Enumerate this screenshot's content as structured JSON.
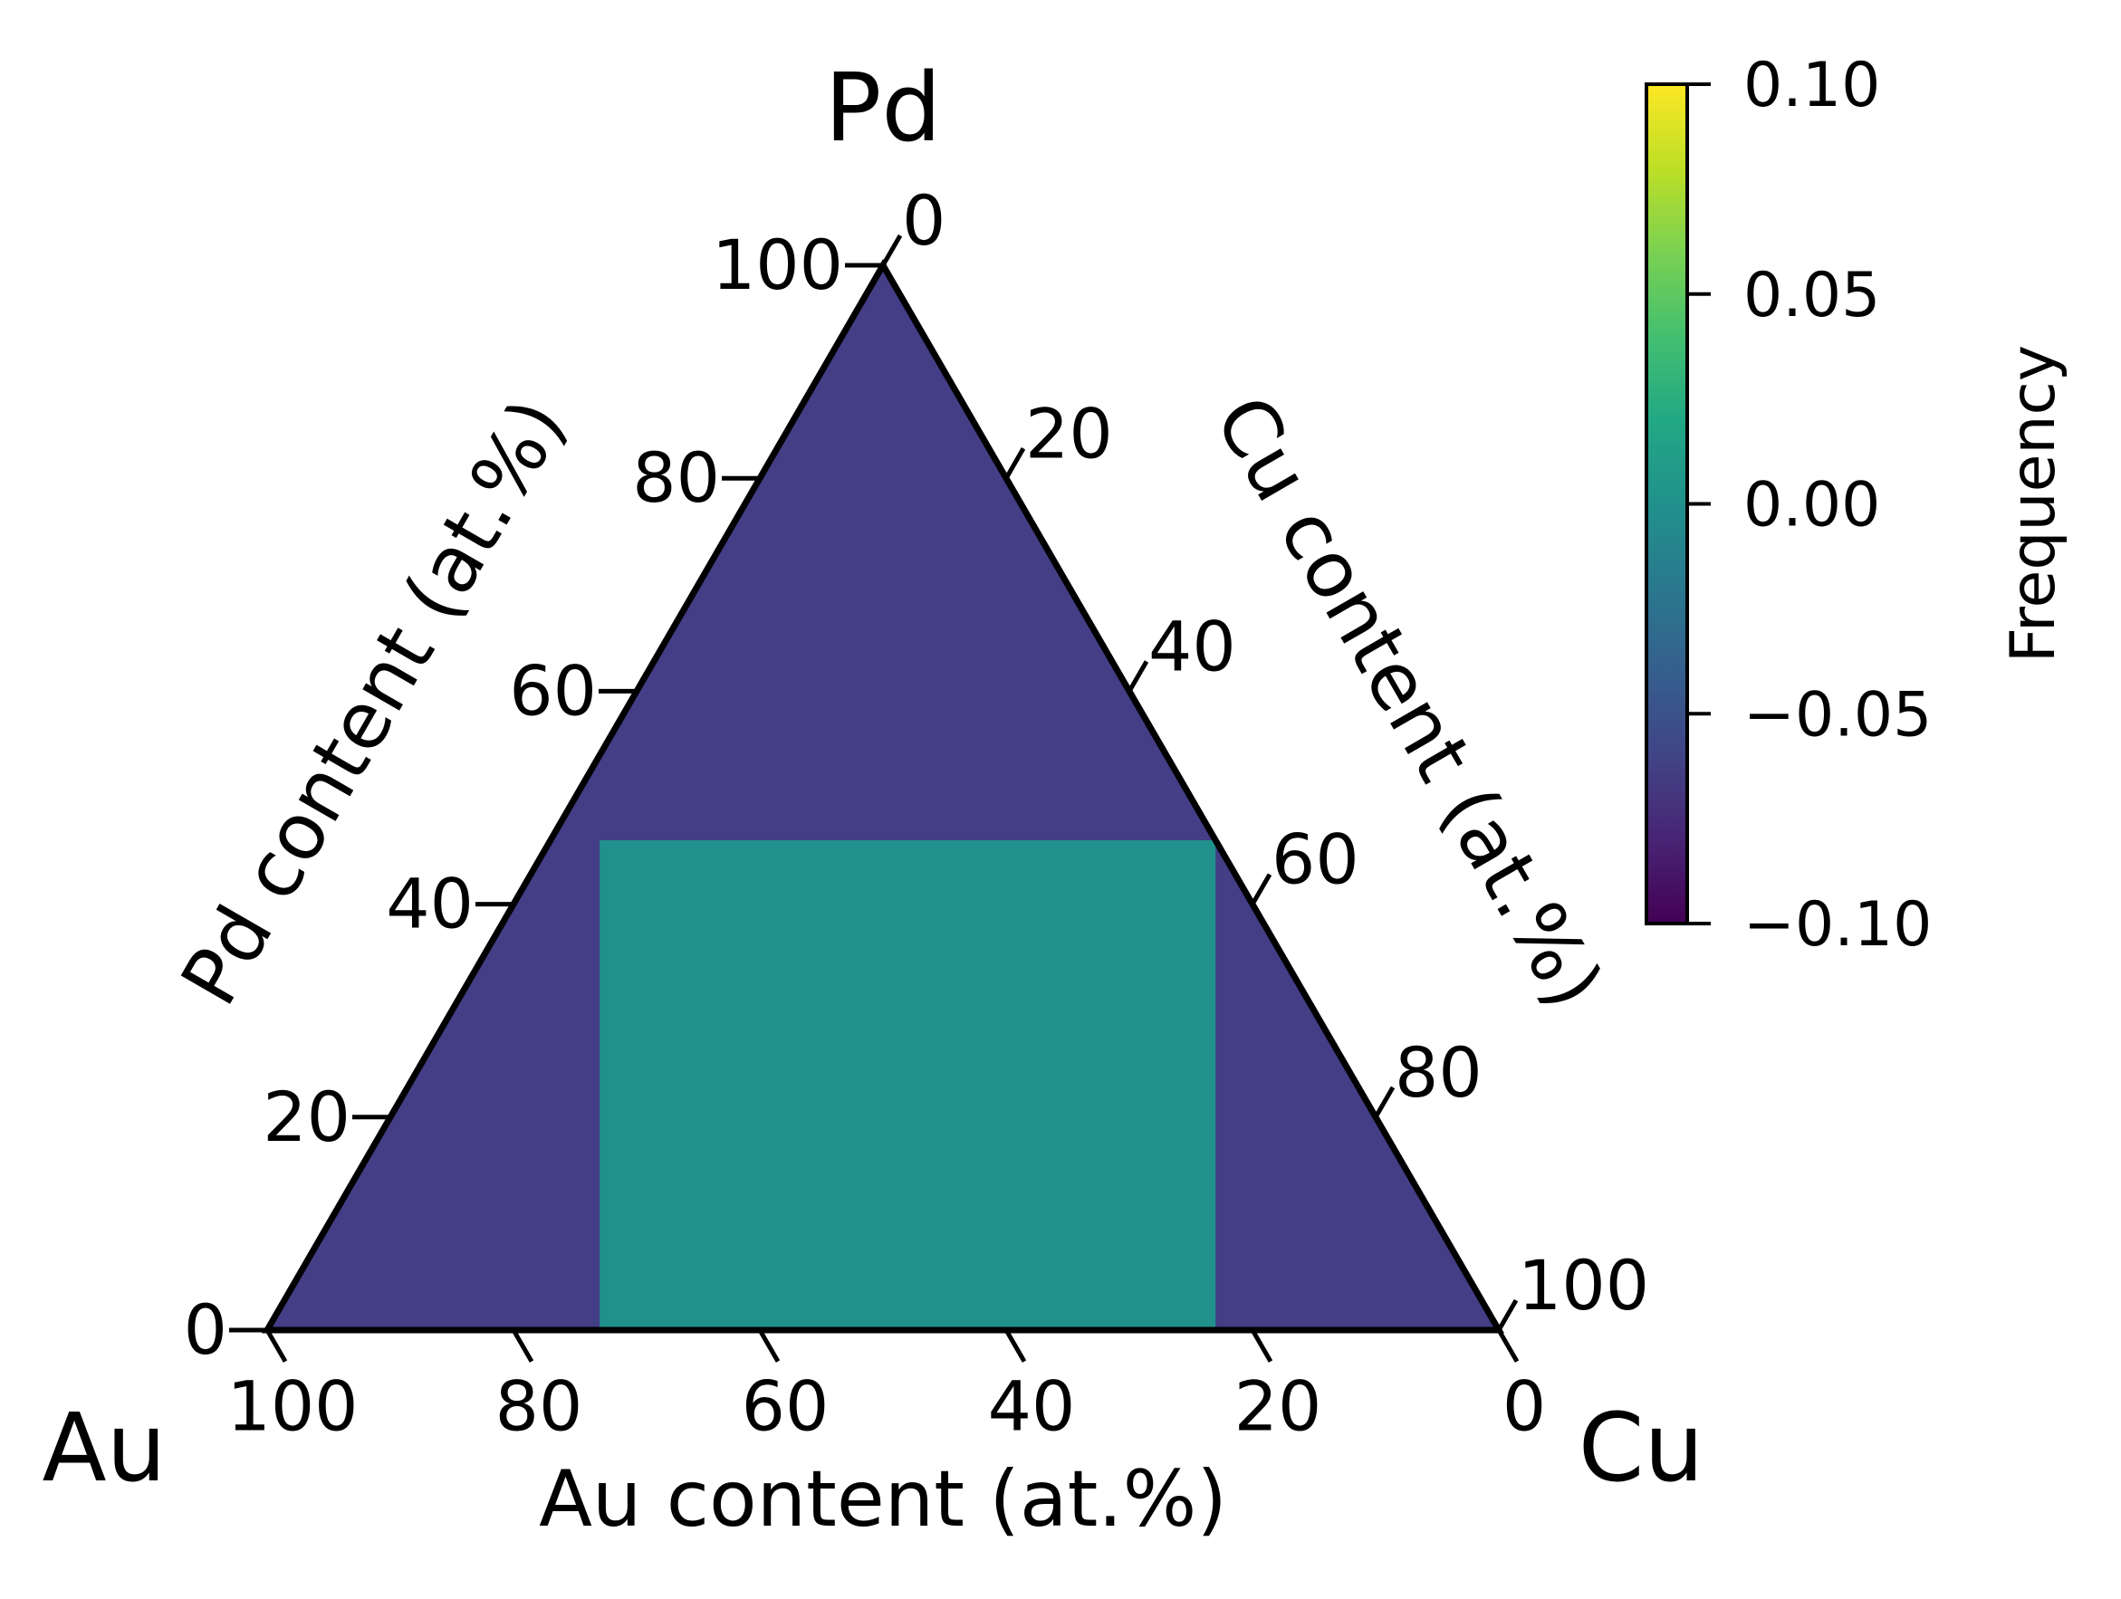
{
  "chart_data": {
    "type": "heatmap",
    "subtype": "ternary",
    "vertices": {
      "top": "Pd",
      "left": "Au",
      "right": "Cu"
    },
    "axes": {
      "left": {
        "label": "Pd content (at.%)",
        "ticks": [
          0,
          20,
          40,
          60,
          80,
          100
        ]
      },
      "right": {
        "label": "Cu content (at.%)",
        "ticks": [
          0,
          20,
          40,
          60,
          80,
          100
        ]
      },
      "bottom": {
        "label": "Au content (at.%)",
        "ticks": [
          100,
          80,
          60,
          40,
          20,
          0
        ]
      }
    },
    "background_value": -0.1,
    "regions": [
      {
        "au_range": [
          23,
          73
        ],
        "pd_range": [
          0,
          46
        ],
        "value": 0.0
      }
    ],
    "colorbar": {
      "label": "Frequency",
      "range": [
        -0.1,
        0.1
      ],
      "ticks": [
        "−0.10",
        "−0.05",
        "0.00",
        "0.05",
        "0.10"
      ],
      "tick_values": [
        -0.1,
        -0.05,
        0.0,
        0.05,
        0.1
      ],
      "colormap": "viridis"
    },
    "colors": {
      "low": "#440154",
      "mid": "#21918c",
      "high": "#fde725",
      "background": "#433e85",
      "region": "#22a884"
    }
  }
}
